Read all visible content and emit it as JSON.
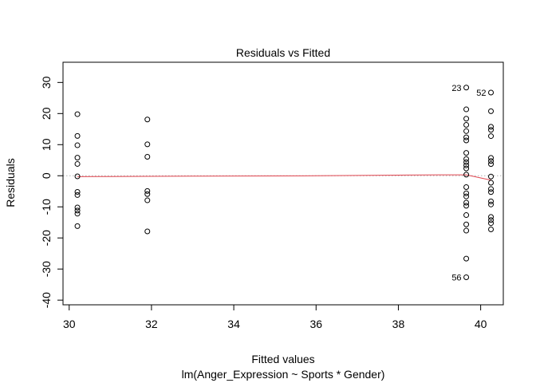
{
  "chart_data": {
    "type": "scatter",
    "title": "Residuals vs Fitted",
    "xlabel": "Fitted values",
    "subtitle": "lm(Anger_Expression ~ Sports * Gender)",
    "ylabel": "Residuals",
    "xlim": [
      29.85,
      40.55
    ],
    "ylim": [
      -41.5,
      36.5
    ],
    "x_ticks": [
      30,
      32,
      34,
      36,
      38,
      40
    ],
    "y_ticks": [
      -40,
      -30,
      -20,
      -10,
      0,
      10,
      20,
      30
    ],
    "reference_line": {
      "y": 0,
      "style": "dotted",
      "color": "#b0b0b0"
    },
    "smoother_color": "#e0454f",
    "point_color": "#000000",
    "points": [
      {
        "x": 30.2,
        "y": 19.8
      },
      {
        "x": 30.2,
        "y": 12.8
      },
      {
        "x": 30.2,
        "y": 9.8
      },
      {
        "x": 30.2,
        "y": 5.8
      },
      {
        "x": 30.2,
        "y": 3.8
      },
      {
        "x": 30.2,
        "y": -0.2
      },
      {
        "x": 30.2,
        "y": -5.2
      },
      {
        "x": 30.2,
        "y": -6.2
      },
      {
        "x": 30.2,
        "y": -10.2
      },
      {
        "x": 30.2,
        "y": -11.2
      },
      {
        "x": 30.2,
        "y": -12.2
      },
      {
        "x": 30.2,
        "y": -16.2
      },
      {
        "x": 31.9,
        "y": 18.1
      },
      {
        "x": 31.9,
        "y": 10.1
      },
      {
        "x": 31.9,
        "y": 6.1
      },
      {
        "x": 31.9,
        "y": -4.9
      },
      {
        "x": 31.9,
        "y": -5.9
      },
      {
        "x": 31.9,
        "y": -7.9
      },
      {
        "x": 31.9,
        "y": -17.9
      },
      {
        "x": 39.65,
        "y": 28.35,
        "label": "23"
      },
      {
        "x": 39.65,
        "y": 21.35
      },
      {
        "x": 39.65,
        "y": 18.35
      },
      {
        "x": 39.65,
        "y": 16.35
      },
      {
        "x": 39.65,
        "y": 14.35
      },
      {
        "x": 39.65,
        "y": 12.35
      },
      {
        "x": 39.65,
        "y": 11.35
      },
      {
        "x": 39.65,
        "y": 7.35
      },
      {
        "x": 39.65,
        "y": 5.35
      },
      {
        "x": 39.65,
        "y": 4.35
      },
      {
        "x": 39.65,
        "y": 3.35
      },
      {
        "x": 39.65,
        "y": 2.35
      },
      {
        "x": 39.65,
        "y": 0.35
      },
      {
        "x": 39.65,
        "y": -3.65
      },
      {
        "x": 39.65,
        "y": -5.65
      },
      {
        "x": 39.65,
        "y": -6.65
      },
      {
        "x": 39.65,
        "y": -8.65
      },
      {
        "x": 39.65,
        "y": -9.65
      },
      {
        "x": 39.65,
        "y": -12.65
      },
      {
        "x": 39.65,
        "y": -15.65
      },
      {
        "x": 39.65,
        "y": -17.65
      },
      {
        "x": 39.65,
        "y": -26.65
      },
      {
        "x": 39.65,
        "y": -32.65,
        "label": "56"
      },
      {
        "x": 40.25,
        "y": 26.75,
        "label": "52"
      },
      {
        "x": 40.25,
        "y": 20.75
      },
      {
        "x": 40.25,
        "y": 15.75
      },
      {
        "x": 40.25,
        "y": 14.75
      },
      {
        "x": 40.25,
        "y": 12.75
      },
      {
        "x": 40.25,
        "y": 5.75
      },
      {
        "x": 40.25,
        "y": 4.75
      },
      {
        "x": 40.25,
        "y": 3.75
      },
      {
        "x": 40.25,
        "y": -0.25
      },
      {
        "x": 40.25,
        "y": -2.25
      },
      {
        "x": 40.25,
        "y": -4.25
      },
      {
        "x": 40.25,
        "y": -5.25
      },
      {
        "x": 40.25,
        "y": -8.25
      },
      {
        "x": 40.25,
        "y": -9.25
      },
      {
        "x": 40.25,
        "y": -13.25
      },
      {
        "x": 40.25,
        "y": -14.25
      },
      {
        "x": 40.25,
        "y": -15.25
      },
      {
        "x": 40.25,
        "y": -17.25
      }
    ],
    "smoother": [
      {
        "x": 30.2,
        "y": -0.3
      },
      {
        "x": 31.0,
        "y": -0.25
      },
      {
        "x": 31.9,
        "y": -0.2
      },
      {
        "x": 33.0,
        "y": -0.15
      },
      {
        "x": 34.0,
        "y": -0.1
      },
      {
        "x": 35.0,
        "y": -0.05
      },
      {
        "x": 36.0,
        "y": 0.0
      },
      {
        "x": 37.0,
        "y": 0.1
      },
      {
        "x": 38.0,
        "y": 0.2
      },
      {
        "x": 39.0,
        "y": 0.3
      },
      {
        "x": 39.65,
        "y": 0.3
      },
      {
        "x": 40.25,
        "y": -1.4
      }
    ]
  }
}
